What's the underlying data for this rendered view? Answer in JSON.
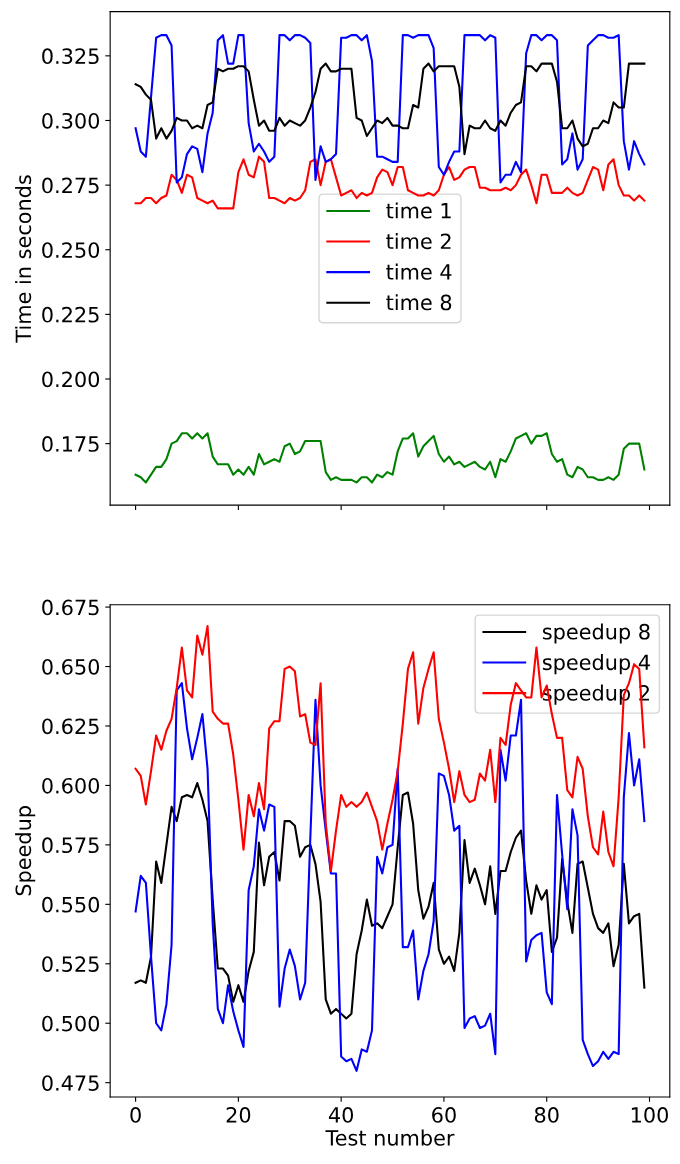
{
  "chart_data": [
    {
      "type": "line",
      "ylabel": "Time in seconds",
      "x": [
        0,
        1,
        2,
        3,
        4,
        5,
        6,
        7,
        8,
        9,
        10,
        11,
        12,
        13,
        14,
        15,
        16,
        17,
        18,
        19,
        20,
        21,
        22,
        23,
        24,
        25,
        26,
        27,
        28,
        29,
        30,
        31,
        32,
        33,
        34,
        35,
        36,
        37,
        38,
        39,
        40,
        41,
        42,
        43,
        44,
        45,
        46,
        47,
        48,
        49,
        50,
        51,
        52,
        53,
        54,
        55,
        56,
        57,
        58,
        59,
        60,
        61,
        62,
        63,
        64,
        65,
        66,
        67,
        68,
        69,
        70,
        71,
        72,
        73,
        74,
        75,
        76,
        77,
        78,
        79,
        80,
        81,
        82,
        83,
        84,
        85,
        86,
        87,
        88,
        89,
        90,
        91,
        92,
        93,
        94,
        95,
        96,
        97,
        98,
        99
      ],
      "xlim": [
        -4.95,
        103.95
      ],
      "xticks": [
        0,
        20,
        40,
        60,
        80,
        100
      ],
      "ylim": [
        0.1512,
        0.3421
      ],
      "yticks": [
        {
          "value": 0.175,
          "label": "0.175"
        },
        {
          "value": 0.2,
          "label": "0.200"
        },
        {
          "value": 0.225,
          "label": "0.225"
        },
        {
          "value": 0.25,
          "label": "0.250"
        },
        {
          "value": 0.275,
          "label": "0.275"
        },
        {
          "value": 0.3,
          "label": "0.300"
        },
        {
          "value": 0.325,
          "label": "0.325"
        }
      ],
      "tick_labels": "y",
      "legend": "center",
      "marker": "none",
      "line_style": "solid",
      "series": [
        {
          "name": "time 1",
          "color": "#008000",
          "values": [
            0.163,
            0.162,
            0.16,
            0.163,
            0.166,
            0.166,
            0.169,
            0.175,
            0.176,
            0.179,
            0.179,
            0.177,
            0.179,
            0.177,
            0.179,
            0.17,
            0.167,
            0.167,
            0.167,
            0.163,
            0.165,
            0.163,
            0.166,
            0.163,
            0.171,
            0.167,
            0.168,
            0.169,
            0.168,
            0.174,
            0.175,
            0.171,
            0.172,
            0.176,
            0.176,
            0.176,
            0.176,
            0.164,
            0.161,
            0.162,
            0.161,
            0.161,
            0.161,
            0.16,
            0.162,
            0.162,
            0.16,
            0.163,
            0.162,
            0.164,
            0.163,
            0.172,
            0.177,
            0.177,
            0.179,
            0.17,
            0.174,
            0.176,
            0.178,
            0.171,
            0.168,
            0.17,
            0.167,
            0.168,
            0.166,
            0.167,
            0.168,
            0.166,
            0.165,
            0.168,
            0.162,
            0.169,
            0.168,
            0.172,
            0.177,
            0.178,
            0.179,
            0.175,
            0.178,
            0.178,
            0.179,
            0.171,
            0.168,
            0.169,
            0.163,
            0.162,
            0.166,
            0.165,
            0.162,
            0.162,
            0.161,
            0.161,
            0.162,
            0.161,
            0.163,
            0.173,
            0.175,
            0.175,
            0.175,
            0.165
          ]
        },
        {
          "name": "time 2",
          "color": "#ff0000",
          "values": [
            0.268,
            0.268,
            0.27,
            0.27,
            0.268,
            0.27,
            0.271,
            0.279,
            0.277,
            0.272,
            0.279,
            0.278,
            0.27,
            0.269,
            0.268,
            0.269,
            0.266,
            0.266,
            0.266,
            0.266,
            0.28,
            0.285,
            0.279,
            0.278,
            0.286,
            0.284,
            0.27,
            0.27,
            0.269,
            0.268,
            0.27,
            0.269,
            0.27,
            0.273,
            0.284,
            0.285,
            0.275,
            0.284,
            0.285,
            0.278,
            0.271,
            0.272,
            0.273,
            0.27,
            0.272,
            0.271,
            0.272,
            0.278,
            0.281,
            0.28,
            0.275,
            0.282,
            0.282,
            0.273,
            0.272,
            0.271,
            0.271,
            0.272,
            0.271,
            0.273,
            0.279,
            0.282,
            0.277,
            0.278,
            0.281,
            0.282,
            0.282,
            0.274,
            0.274,
            0.273,
            0.273,
            0.273,
            0.274,
            0.273,
            0.275,
            0.279,
            0.281,
            0.275,
            0.268,
            0.279,
            0.279,
            0.272,
            0.272,
            0.272,
            0.274,
            0.272,
            0.271,
            0.272,
            0.277,
            0.282,
            0.281,
            0.273,
            0.283,
            0.285,
            0.275,
            0.271,
            0.271,
            0.269,
            0.271,
            0.269
          ]
        },
        {
          "name": "time 4",
          "color": "#0000ff",
          "values": [
            0.297,
            0.288,
            0.286,
            0.309,
            0.332,
            0.333,
            0.333,
            0.329,
            0.276,
            0.278,
            0.287,
            0.29,
            0.289,
            0.28,
            0.295,
            0.303,
            0.331,
            0.333,
            0.322,
            0.322,
            0.333,
            0.333,
            0.299,
            0.288,
            0.291,
            0.288,
            0.284,
            0.286,
            0.333,
            0.333,
            0.331,
            0.333,
            0.333,
            0.332,
            0.33,
            0.277,
            0.29,
            0.284,
            0.285,
            0.287,
            0.332,
            0.332,
            0.333,
            0.333,
            0.331,
            0.333,
            0.323,
            0.286,
            0.286,
            0.285,
            0.284,
            0.284,
            0.333,
            0.333,
            0.332,
            0.333,
            0.333,
            0.333,
            0.328,
            0.282,
            0.279,
            0.284,
            0.288,
            0.288,
            0.333,
            0.333,
            0.333,
            0.333,
            0.331,
            0.333,
            0.332,
            0.276,
            0.279,
            0.279,
            0.284,
            0.28,
            0.326,
            0.333,
            0.333,
            0.331,
            0.333,
            0.333,
            0.331,
            0.283,
            0.285,
            0.295,
            0.281,
            0.285,
            0.329,
            0.331,
            0.333,
            0.333,
            0.332,
            0.332,
            0.333,
            0.292,
            0.281,
            0.292,
            0.287,
            0.283
          ]
        },
        {
          "name": "time 8",
          "color": "#000000",
          "values": [
            0.314,
            0.313,
            0.31,
            0.308,
            0.293,
            0.297,
            0.293,
            0.296,
            0.301,
            0.3,
            0.3,
            0.297,
            0.298,
            0.297,
            0.306,
            0.307,
            0.32,
            0.319,
            0.32,
            0.32,
            0.321,
            0.321,
            0.319,
            0.308,
            0.298,
            0.3,
            0.296,
            0.296,
            0.301,
            0.298,
            0.3,
            0.299,
            0.298,
            0.3,
            0.305,
            0.311,
            0.32,
            0.322,
            0.319,
            0.319,
            0.32,
            0.32,
            0.32,
            0.301,
            0.3,
            0.294,
            0.297,
            0.3,
            0.299,
            0.301,
            0.298,
            0.298,
            0.297,
            0.297,
            0.306,
            0.305,
            0.32,
            0.322,
            0.319,
            0.321,
            0.321,
            0.321,
            0.321,
            0.313,
            0.287,
            0.298,
            0.297,
            0.297,
            0.3,
            0.297,
            0.296,
            0.3,
            0.298,
            0.303,
            0.306,
            0.307,
            0.321,
            0.321,
            0.319,
            0.322,
            0.322,
            0.322,
            0.315,
            0.297,
            0.297,
            0.3,
            0.293,
            0.29,
            0.291,
            0.297,
            0.297,
            0.3,
            0.299,
            0.307,
            0.305,
            0.305,
            0.322,
            0.322,
            0.322,
            0.322
          ]
        }
      ]
    },
    {
      "type": "line",
      "xlabel": "Test number",
      "ylabel": "Speedup",
      "x": [
        0,
        1,
        2,
        3,
        4,
        5,
        6,
        7,
        8,
        9,
        10,
        11,
        12,
        13,
        14,
        15,
        16,
        17,
        18,
        19,
        20,
        21,
        22,
        23,
        24,
        25,
        26,
        27,
        28,
        29,
        30,
        31,
        32,
        33,
        34,
        35,
        36,
        37,
        38,
        39,
        40,
        41,
        42,
        43,
        44,
        45,
        46,
        47,
        48,
        49,
        50,
        51,
        52,
        53,
        54,
        55,
        56,
        57,
        58,
        59,
        60,
        61,
        62,
        63,
        64,
        65,
        66,
        67,
        68,
        69,
        70,
        71,
        72,
        73,
        74,
        75,
        76,
        77,
        78,
        79,
        80,
        81,
        82,
        83,
        84,
        85,
        86,
        87,
        88,
        89,
        90,
        91,
        92,
        93,
        94,
        95,
        96,
        97,
        98,
        99
      ],
      "xlim": [
        -4.95,
        103.95
      ],
      "xticks": [
        0,
        20,
        40,
        60,
        80,
        100
      ],
      "ylim": [
        0.469,
        0.676
      ],
      "yticks": [
        {
          "value": 0.475,
          "label": "0.475"
        },
        {
          "value": 0.5,
          "label": "0.500"
        },
        {
          "value": 0.525,
          "label": "0.525"
        },
        {
          "value": 0.55,
          "label": "0.550"
        },
        {
          "value": 0.575,
          "label": "0.575"
        },
        {
          "value": 0.6,
          "label": "0.600"
        },
        {
          "value": 0.625,
          "label": "0.625"
        },
        {
          "value": 0.65,
          "label": "0.650"
        },
        {
          "value": 0.675,
          "label": "0.675"
        }
      ],
      "legend": "top right",
      "marker": "none",
      "line_style": "solid",
      "series": [
        {
          "name": "speedup 8",
          "color": "#000000",
          "values": [
            0.517,
            0.518,
            0.517,
            0.528,
            0.568,
            0.559,
            0.575,
            0.591,
            0.585,
            0.595,
            0.596,
            0.595,
            0.601,
            0.594,
            0.585,
            0.552,
            0.523,
            0.523,
            0.52,
            0.509,
            0.516,
            0.509,
            0.522,
            0.53,
            0.576,
            0.558,
            0.57,
            0.572,
            0.56,
            0.585,
            0.585,
            0.583,
            0.57,
            0.574,
            0.575,
            0.567,
            0.551,
            0.51,
            0.504,
            0.506,
            0.504,
            0.502,
            0.504,
            0.529,
            0.539,
            0.552,
            0.541,
            0.542,
            0.54,
            0.545,
            0.55,
            0.574,
            0.596,
            0.597,
            0.584,
            0.556,
            0.544,
            0.549,
            0.559,
            0.531,
            0.525,
            0.528,
            0.522,
            0.538,
            0.577,
            0.559,
            0.565,
            0.558,
            0.55,
            0.566,
            0.546,
            0.564,
            0.564,
            0.572,
            0.578,
            0.581,
            0.56,
            0.546,
            0.558,
            0.552,
            0.556,
            0.53,
            0.536,
            0.569,
            0.551,
            0.538,
            0.567,
            0.568,
            0.557,
            0.546,
            0.54,
            0.538,
            0.542,
            0.524,
            0.533,
            0.567,
            0.542,
            0.545,
            0.546,
            0.515
          ]
        },
        {
          "name": "speedup 4",
          "color": "#0000ff",
          "values": [
            0.547,
            0.562,
            0.559,
            0.528,
            0.5,
            0.497,
            0.508,
            0.533,
            0.64,
            0.643,
            0.624,
            0.611,
            0.62,
            0.63,
            0.607,
            0.542,
            0.506,
            0.5,
            0.516,
            0.505,
            0.497,
            0.49,
            0.556,
            0.566,
            0.59,
            0.581,
            0.592,
            0.591,
            0.507,
            0.523,
            0.531,
            0.524,
            0.51,
            0.517,
            0.578,
            0.636,
            0.6,
            0.581,
            0.563,
            0.563,
            0.486,
            0.484,
            0.485,
            0.48,
            0.489,
            0.488,
            0.497,
            0.57,
            0.563,
            0.574,
            0.575,
            0.607,
            0.532,
            0.532,
            0.539,
            0.51,
            0.522,
            0.529,
            0.543,
            0.605,
            0.604,
            0.596,
            0.581,
            0.583,
            0.498,
            0.502,
            0.503,
            0.498,
            0.499,
            0.504,
            0.487,
            0.615,
            0.602,
            0.621,
            0.621,
            0.636,
            0.526,
            0.535,
            0.537,
            0.538,
            0.513,
            0.508,
            0.596,
            0.571,
            0.548,
            0.59,
            0.579,
            0.493,
            0.487,
            0.482,
            0.484,
            0.488,
            0.485,
            0.488,
            0.487,
            0.595,
            0.622,
            0.6,
            0.611,
            0.585
          ]
        },
        {
          "name": "speedup 2",
          "color": "#ff0000",
          "values": [
            0.607,
            0.604,
            0.592,
            0.606,
            0.621,
            0.615,
            0.623,
            0.628,
            0.641,
            0.658,
            0.64,
            0.637,
            0.663,
            0.655,
            0.667,
            0.631,
            0.628,
            0.626,
            0.626,
            0.613,
            0.594,
            0.573,
            0.596,
            0.587,
            0.601,
            0.59,
            0.624,
            0.627,
            0.627,
            0.649,
            0.65,
            0.648,
            0.629,
            0.63,
            0.618,
            0.617,
            0.643,
            0.584,
            0.564,
            0.581,
            0.596,
            0.591,
            0.593,
            0.591,
            0.593,
            0.597,
            0.591,
            0.585,
            0.573,
            0.584,
            0.594,
            0.606,
            0.626,
            0.649,
            0.656,
            0.626,
            0.641,
            0.649,
            0.656,
            0.628,
            0.618,
            0.607,
            0.593,
            0.606,
            0.596,
            0.593,
            0.594,
            0.605,
            0.602,
            0.615,
            0.593,
            0.62,
            0.617,
            0.634,
            0.643,
            0.64,
            0.637,
            0.637,
            0.658,
            0.637,
            0.642,
            0.63,
            0.62,
            0.62,
            0.598,
            0.595,
            0.612,
            0.607,
            0.587,
            0.574,
            0.571,
            0.589,
            0.572,
            0.566,
            0.595,
            0.638,
            0.643,
            0.651,
            0.649,
            0.616
          ]
        }
      ]
    }
  ]
}
